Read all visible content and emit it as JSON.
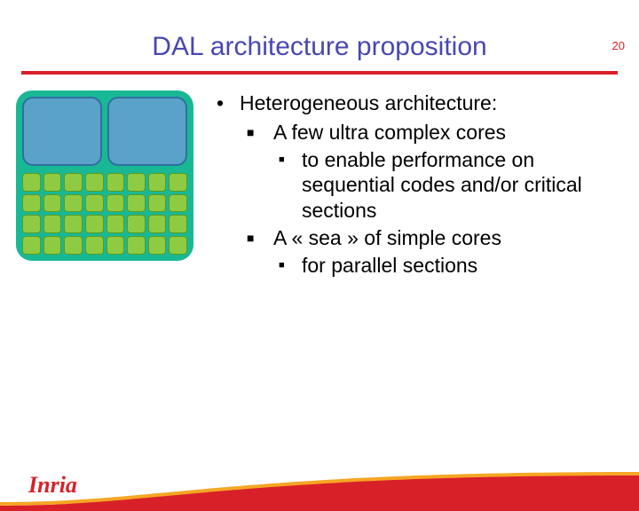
{
  "page_number": "20",
  "title": "DAL architecture proposition",
  "colors": {
    "title": "#4848b0",
    "rule": "#d82028",
    "page_number": "#d82028",
    "chip_bg": "#19b894",
    "big_core_fill": "#5aa2c8",
    "big_core_stroke": "#2e6fa0",
    "small_core_fill": "#8fcb42",
    "small_core_stroke": "#5a9c1e",
    "footer_red": "#d82028",
    "footer_yellow": "#f5a623",
    "logo": "#d82028",
    "text": "#000000"
  },
  "diagram": {
    "big_cores": 2,
    "small_cols": 8,
    "small_rows": 4
  },
  "bullets": {
    "l1": "Heterogeneous architecture:",
    "l2a": "A few ultra complex cores",
    "l3a": "to enable performance on sequential codes and/or critical sections",
    "l2b": "A « sea » of simple cores",
    "l3b": "for parallel sections"
  },
  "logo_text": "Inria"
}
